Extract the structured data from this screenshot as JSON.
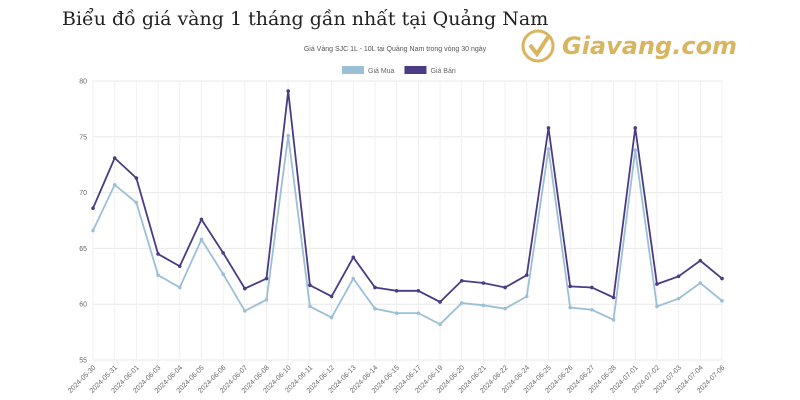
{
  "heading": "Biểu đồ giá vàng 1 tháng gần nhất tại Quảng Nam",
  "logo": "Giavang.com",
  "chart_data": {
    "type": "line",
    "title": "Giá Vàng SJC 1L - 10L tại Quảng Nam trong vòng 30 ngày",
    "categories": [
      "2024-05-30",
      "2024-05-31",
      "2024-06-01",
      "2024-06-03",
      "2024-06-04",
      "2024-06-05",
      "2024-06-06",
      "2024-06-07",
      "2024-06-08",
      "2024-06-10",
      "2024-06-11",
      "2024-06-12",
      "2024-06-13",
      "2024-06-14",
      "2024-06-15",
      "2024-06-17",
      "2024-06-19",
      "2024-06-20",
      "2024-06-21",
      "2024-06-22",
      "2024-06-24",
      "2024-06-25",
      "2024-06-26",
      "2024-06-27",
      "2024-06-28",
      "2024-07-01",
      "2024-07-02",
      "2024-07-03",
      "2024-07-04",
      "2024-07-06"
    ],
    "series": [
      {
        "name": "Giá Mua",
        "color": "#9bbfd6",
        "values": [
          66.6,
          70.7,
          69.1,
          62.6,
          61.5,
          65.8,
          62.7,
          59.4,
          60.4,
          75.1,
          59.8,
          58.8,
          62.3,
          59.6,
          59.2,
          59.2,
          58.2,
          60.1,
          59.9,
          59.6,
          60.7,
          73.9,
          59.7,
          59.5,
          58.6,
          73.8,
          59.8,
          60.5,
          61.9,
          60.3
        ]
      },
      {
        "name": "Giá Bán",
        "color": "#4a3b84",
        "values": [
          68.6,
          73.1,
          71.3,
          64.5,
          63.4,
          67.6,
          64.6,
          61.4,
          62.3,
          79.1,
          61.7,
          60.7,
          64.2,
          61.5,
          61.2,
          61.2,
          60.2,
          62.1,
          61.9,
          61.5,
          62.6,
          75.8,
          61.6,
          61.5,
          60.6,
          75.8,
          61.8,
          62.5,
          63.9,
          62.3
        ]
      }
    ],
    "ylim": [
      55,
      80
    ],
    "yticks": [
      55,
      60,
      65,
      70,
      75,
      80
    ],
    "grid": true
  }
}
